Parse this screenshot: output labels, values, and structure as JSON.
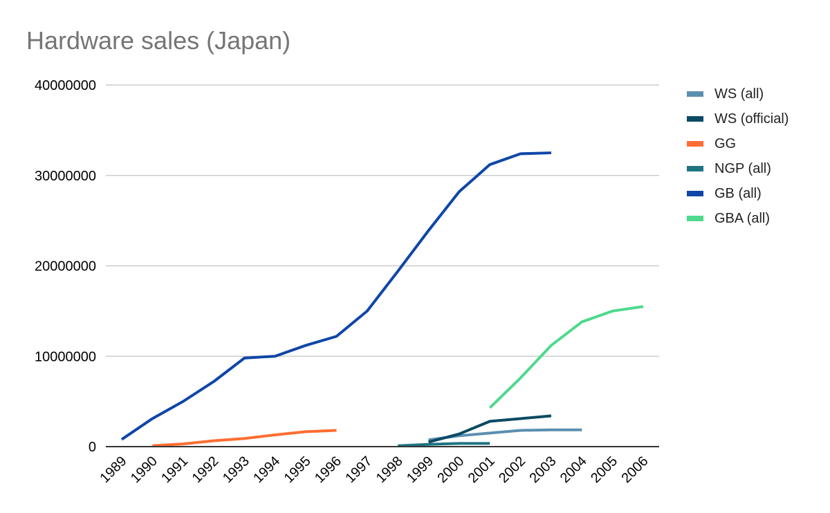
{
  "chart_data": {
    "type": "line",
    "title": "Hardware sales (Japan)",
    "xlabel": "",
    "ylabel": "",
    "ylim": [
      0,
      40000000
    ],
    "yticks": [
      0,
      10000000,
      20000000,
      30000000,
      40000000
    ],
    "ytick_labels": [
      "0",
      "10000000",
      "20000000",
      "30000000",
      "40000000"
    ],
    "grid": true,
    "legend_position": "right",
    "categories": [
      "1989",
      "1990",
      "1991",
      "1992",
      "1993",
      "1994",
      "1995",
      "1996",
      "1997",
      "1998",
      "1999",
      "2000",
      "2001",
      "2002",
      "2003",
      "2004",
      "2005",
      "2006"
    ],
    "series": [
      {
        "name": "WS (all)",
        "color": "#5b8fb0",
        "values": [
          null,
          null,
          null,
          null,
          null,
          null,
          null,
          null,
          null,
          null,
          750000,
          1200000,
          1500000,
          1800000,
          1850000,
          1850000,
          null,
          null
        ]
      },
      {
        "name": "WS (official)",
        "color": "#0b4a63",
        "values": [
          null,
          null,
          null,
          null,
          null,
          null,
          null,
          null,
          null,
          null,
          500000,
          1400000,
          2800000,
          3100000,
          3400000,
          null,
          null,
          null
        ]
      },
      {
        "name": "GG",
        "color": "#ff6d31",
        "values": [
          null,
          100000,
          300000,
          650000,
          900000,
          1300000,
          1650000,
          1800000,
          null,
          null,
          null,
          null,
          null,
          null,
          null,
          null,
          null,
          null
        ]
      },
      {
        "name": "NGP (all)",
        "color": "#1e7480",
        "values": [
          null,
          null,
          null,
          null,
          null,
          null,
          null,
          null,
          null,
          100000,
          250000,
          350000,
          350000,
          null,
          null,
          null,
          null,
          null
        ]
      },
      {
        "name": "GB (all)",
        "color": "#0f46a8",
        "values": [
          800000,
          3100000,
          5000000,
          7200000,
          9800000,
          10000000,
          11200000,
          12200000,
          15000000,
          19400000,
          23900000,
          28200000,
          31200000,
          32400000,
          32500000,
          null,
          null,
          null
        ]
      },
      {
        "name": "GBA (all)",
        "color": "#4ed98d",
        "values": [
          null,
          null,
          null,
          null,
          null,
          null,
          null,
          null,
          null,
          null,
          null,
          null,
          4300000,
          7600000,
          11200000,
          13800000,
          15000000,
          15500000
        ]
      }
    ]
  }
}
